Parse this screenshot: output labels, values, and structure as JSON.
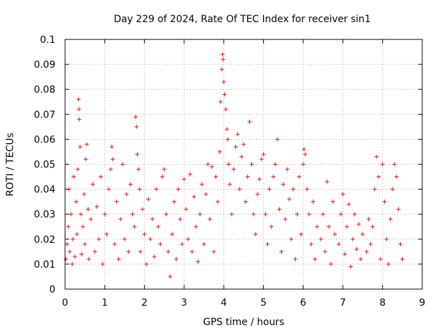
{
  "chart_data": {
    "type": "scatter",
    "title": "Day 229 of 2024, Rate Of TEC Index for receiver sin1",
    "xlabel": "GPS time / hours",
    "ylabel": "ROTI / TECUs",
    "xlim": [
      0,
      9
    ],
    "ylim": [
      0,
      0.1
    ],
    "xticks": [
      "0",
      "1",
      "2",
      "3",
      "4",
      "5",
      "6",
      "7",
      "8",
      "9"
    ],
    "yticks": [
      "0",
      "0.01",
      "0.02",
      "0.03",
      "0.04",
      "0.05",
      "0.06",
      "0.07",
      "0.08",
      "0.09",
      "0.1"
    ],
    "grid": true,
    "marker": "+",
    "marker_color": "#ff0000",
    "series": [
      {
        "name": "ROTI",
        "points": [
          [
            0.02,
            0.012
          ],
          [
            0.05,
            0.018
          ],
          [
            0.08,
            0.025
          ],
          [
            0.1,
            0.04
          ],
          [
            0.12,
            0.015
          ],
          [
            0.15,
            0.03
          ],
          [
            0.18,
            0.01
          ],
          [
            0.2,
            0.02
          ],
          [
            0.22,
            0.045
          ],
          [
            0.25,
            0.013
          ],
          [
            0.28,
            0.035
          ],
          [
            0.3,
            0.022
          ],
          [
            0.32,
            0.048
          ],
          [
            0.34,
            0.076
          ],
          [
            0.35,
            0.072
          ],
          [
            0.36,
            0.068
          ],
          [
            0.38,
            0.057
          ],
          [
            0.4,
            0.03
          ],
          [
            0.42,
            0.014
          ],
          [
            0.45,
            0.025
          ],
          [
            0.48,
            0.038
          ],
          [
            0.5,
            0.018
          ],
          [
            0.52,
            0.052
          ],
          [
            0.55,
            0.058
          ],
          [
            0.58,
            0.032
          ],
          [
            0.6,
            0.012
          ],
          [
            0.65,
            0.028
          ],
          [
            0.7,
            0.042
          ],
          [
            0.75,
            0.015
          ],
          [
            0.8,
            0.033
          ],
          [
            0.85,
            0.02
          ],
          [
            0.9,
            0.045
          ],
          [
            0.95,
            0.01
          ],
          [
            1.0,
            0.03
          ],
          [
            1.05,
            0.022
          ],
          [
            1.1,
            0.04
          ],
          [
            1.15,
            0.048
          ],
          [
            1.18,
            0.057
          ],
          [
            1.2,
            0.052
          ],
          [
            1.25,
            0.018
          ],
          [
            1.3,
            0.035
          ],
          [
            1.35,
            0.012
          ],
          [
            1.4,
            0.028
          ],
          [
            1.45,
            0.05
          ],
          [
            1.5,
            0.02
          ],
          [
            1.55,
            0.038
          ],
          [
            1.6,
            0.015
          ],
          [
            1.65,
            0.042
          ],
          [
            1.7,
            0.03
          ],
          [
            1.75,
            0.025
          ],
          [
            1.78,
            0.069
          ],
          [
            1.8,
            0.065
          ],
          [
            1.82,
            0.054
          ],
          [
            1.85,
            0.048
          ],
          [
            1.88,
            0.04
          ],
          [
            1.9,
            0.015
          ],
          [
            1.95,
            0.032
          ],
          [
            2.0,
            0.022
          ],
          [
            2.05,
            0.01
          ],
          [
            2.1,
            0.036
          ],
          [
            2.15,
            0.02
          ],
          [
            2.2,
            0.028
          ],
          [
            2.25,
            0.013
          ],
          [
            2.3,
            0.04
          ],
          [
            2.35,
            0.025
          ],
          [
            2.4,
            0.018
          ],
          [
            2.45,
            0.045
          ],
          [
            2.5,
            0.048
          ],
          [
            2.55,
            0.03
          ],
          [
            2.6,
            0.015
          ],
          [
            2.65,
            0.005
          ],
          [
            2.7,
            0.022
          ],
          [
            2.75,
            0.035
          ],
          [
            2.8,
            0.012
          ],
          [
            2.85,
            0.04
          ],
          [
            2.9,
            0.028
          ],
          [
            2.95,
            0.018
          ],
          [
            3.0,
            0.044
          ],
          [
            3.05,
            0.032
          ],
          [
            3.1,
            0.02
          ],
          [
            3.15,
            0.046
          ],
          [
            3.2,
            0.015
          ],
          [
            3.25,
            0.037
          ],
          [
            3.3,
            0.025
          ],
          [
            3.35,
            0.011
          ],
          [
            3.4,
            0.03
          ],
          [
            3.45,
            0.042
          ],
          [
            3.5,
            0.018
          ],
          [
            3.55,
            0.038
          ],
          [
            3.6,
            0.05
          ],
          [
            3.65,
            0.028
          ],
          [
            3.7,
            0.049
          ],
          [
            3.75,
            0.015
          ],
          [
            3.8,
            0.045
          ],
          [
            3.85,
            0.035
          ],
          [
            3.9,
            0.055
          ],
          [
            3.92,
            0.075
          ],
          [
            3.95,
            0.088
          ],
          [
            3.97,
            0.094
          ],
          [
            3.98,
            0.092
          ],
          [
            4.0,
            0.083
          ],
          [
            4.02,
            0.078
          ],
          [
            4.05,
            0.072
          ],
          [
            4.08,
            0.064
          ],
          [
            4.1,
            0.06
          ],
          [
            4.12,
            0.05
          ],
          [
            4.15,
            0.042
          ],
          [
            4.2,
            0.03
          ],
          [
            4.25,
            0.048
          ],
          [
            4.3,
            0.057
          ],
          [
            4.35,
            0.062
          ],
          [
            4.4,
            0.04
          ],
          [
            4.45,
            0.053
          ],
          [
            4.5,
            0.058
          ],
          [
            4.55,
            0.035
          ],
          [
            4.6,
            0.045
          ],
          [
            4.65,
            0.067
          ],
          [
            4.7,
            0.05
          ],
          [
            4.75,
            0.03
          ],
          [
            4.8,
            0.022
          ],
          [
            4.85,
            0.038
          ],
          [
            4.9,
            0.044
          ],
          [
            4.95,
            0.052
          ],
          [
            5.0,
            0.054
          ],
          [
            5.05,
            0.03
          ],
          [
            5.1,
            0.018
          ],
          [
            5.15,
            0.04
          ],
          [
            5.2,
            0.025
          ],
          [
            5.25,
            0.045
          ],
          [
            5.3,
            0.05
          ],
          [
            5.35,
            0.06
          ],
          [
            5.4,
            0.032
          ],
          [
            5.45,
            0.015
          ],
          [
            5.5,
            0.042
          ],
          [
            5.55,
            0.028
          ],
          [
            5.6,
            0.048
          ],
          [
            5.65,
            0.036
          ],
          [
            5.7,
            0.02
          ],
          [
            5.75,
            0.04
          ],
          [
            5.8,
            0.012
          ],
          [
            5.85,
            0.03
          ],
          [
            5.9,
            0.045
          ],
          [
            5.95,
            0.022
          ],
          [
            6.0,
            0.05
          ],
          [
            6.02,
            0.056
          ],
          [
            6.05,
            0.054
          ],
          [
            6.1,
            0.04
          ],
          [
            6.15,
            0.03
          ],
          [
            6.2,
            0.018
          ],
          [
            6.25,
            0.035
          ],
          [
            6.3,
            0.012
          ],
          [
            6.35,
            0.025
          ],
          [
            6.45,
            0.02
          ],
          [
            6.5,
            0.03
          ],
          [
            6.55,
            0.015
          ],
          [
            6.6,
            0.043
          ],
          [
            6.65,
            0.025
          ],
          [
            6.7,
            0.01
          ],
          [
            6.75,
            0.035
          ],
          [
            6.8,
            0.022
          ],
          [
            6.9,
            0.018
          ],
          [
            6.95,
            0.03
          ],
          [
            7.0,
            0.038
          ],
          [
            7.05,
            0.014
          ],
          [
            7.1,
            0.025
          ],
          [
            7.15,
            0.034
          ],
          [
            7.2,
            0.009
          ],
          [
            7.25,
            0.02
          ],
          [
            7.3,
            0.03
          ],
          [
            7.35,
            0.016
          ],
          [
            7.4,
            0.026
          ],
          [
            7.45,
            0.012
          ],
          [
            7.5,
            0.022
          ],
          [
            7.6,
            0.015
          ],
          [
            7.65,
            0.028
          ],
          [
            7.7,
            0.018
          ],
          [
            7.75,
            0.025
          ],
          [
            7.8,
            0.04
          ],
          [
            7.85,
            0.053
          ],
          [
            7.9,
            0.045
          ],
          [
            7.95,
            0.012
          ],
          [
            8.0,
            0.05
          ],
          [
            8.05,
            0.035
          ],
          [
            8.1,
            0.02
          ],
          [
            8.15,
            0.01
          ],
          [
            8.2,
            0.028
          ],
          [
            8.25,
            0.04
          ],
          [
            8.3,
            0.05
          ],
          [
            8.35,
            0.045
          ],
          [
            8.4,
            0.032
          ],
          [
            8.45,
            0.018
          ],
          [
            8.5,
            0.012
          ]
        ]
      }
    ]
  }
}
